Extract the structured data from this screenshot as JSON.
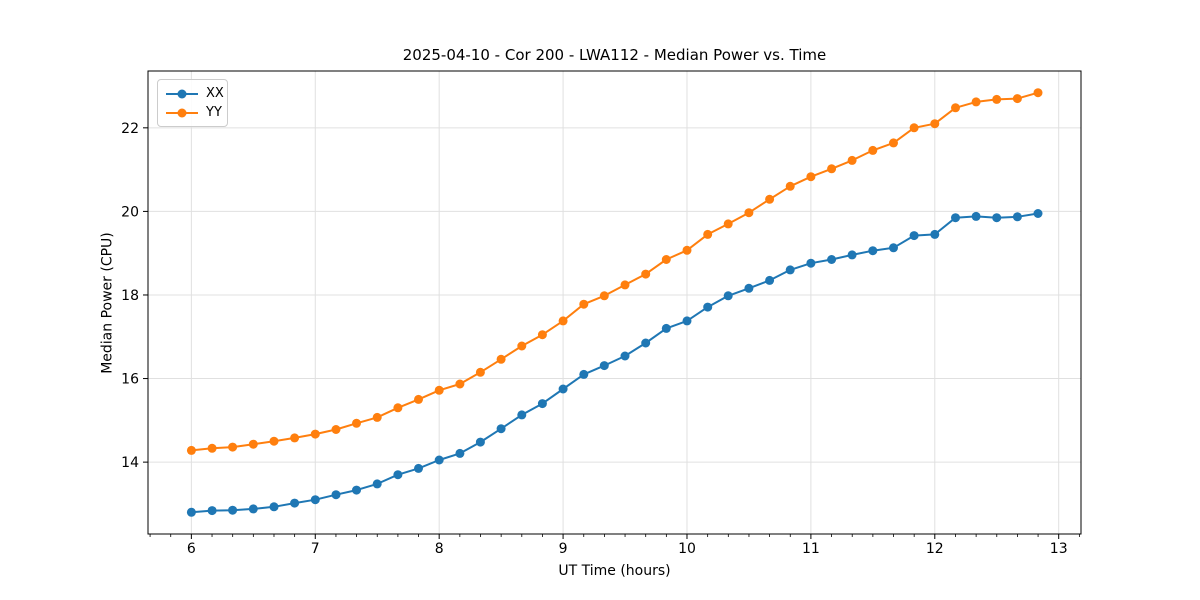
{
  "figure": {
    "title": "2025-04-10 - Cor 200 - LWA112 - Median Power vs. Time",
    "background": "#ffffff",
    "spine_color": "#000000",
    "grid_color": "#e0e0e0",
    "tick_label_color": "#000000"
  },
  "legend": {
    "position": "upper left",
    "entries": [
      {
        "label": "XX",
        "color": "#1f77b4"
      },
      {
        "label": "YY",
        "color": "#ff7f0e"
      }
    ]
  },
  "chart_data": {
    "type": "line",
    "title": "2025-04-10 - Cor 200 - LWA112 - Median Power vs. Time",
    "xlabel": "UT Time (hours)",
    "ylabel": "Median Power (CPU)",
    "xlim": [
      5.65,
      13.18
    ],
    "ylim": [
      12.28,
      23.36
    ],
    "xticks": [
      6,
      7,
      8,
      9,
      10,
      11,
      12,
      13
    ],
    "yticks": [
      14,
      16,
      18,
      20,
      22
    ],
    "x_minor_step": 0.16667,
    "grid": true,
    "legend_position": "upper left",
    "marker": "circle",
    "x": [
      6.0,
      6.167,
      6.333,
      6.5,
      6.667,
      6.833,
      7.0,
      7.167,
      7.333,
      7.5,
      7.667,
      7.833,
      8.0,
      8.167,
      8.333,
      8.5,
      8.667,
      8.833,
      9.0,
      9.167,
      9.333,
      9.5,
      9.667,
      9.833,
      10.0,
      10.167,
      10.333,
      10.5,
      10.667,
      10.833,
      11.0,
      11.167,
      11.333,
      11.5,
      11.667,
      11.833,
      12.0,
      12.167,
      12.333,
      12.5,
      12.667,
      12.833
    ],
    "series": [
      {
        "name": "XX",
        "color": "#1f77b4",
        "values": [
          12.8,
          12.84,
          12.85,
          12.88,
          12.93,
          13.02,
          13.1,
          13.22,
          13.33,
          13.48,
          13.7,
          13.85,
          14.05,
          14.21,
          14.48,
          14.8,
          15.13,
          15.4,
          15.75,
          16.1,
          16.31,
          16.54,
          16.85,
          17.2,
          17.38,
          17.71,
          17.98,
          18.16,
          18.35,
          18.6,
          18.76,
          18.85,
          18.96,
          19.06,
          19.13,
          19.42,
          19.45,
          19.85,
          19.88,
          19.85,
          19.87,
          19.95
        ]
      },
      {
        "name": "YY",
        "color": "#ff7f0e",
        "values": [
          14.28,
          14.33,
          14.36,
          14.43,
          14.5,
          14.58,
          14.67,
          14.78,
          14.93,
          15.07,
          15.3,
          15.5,
          15.72,
          15.87,
          16.15,
          16.46,
          16.78,
          17.05,
          17.38,
          17.78,
          17.98,
          18.24,
          18.5,
          18.85,
          19.07,
          19.45,
          19.7,
          19.97,
          20.29,
          20.6,
          20.83,
          21.02,
          21.22,
          21.46,
          21.64,
          22.0,
          22.1,
          22.48,
          22.62,
          22.68,
          22.7,
          22.84
        ]
      }
    ]
  }
}
